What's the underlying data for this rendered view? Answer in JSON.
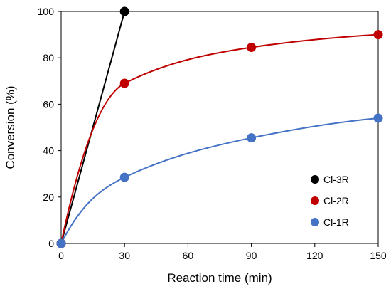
{
  "chart_data": {
    "type": "scatter",
    "xlabel": "Reaction time (min)",
    "ylabel": "Conversion (%)",
    "xlim": [
      0,
      150
    ],
    "ylim": [
      0,
      100
    ],
    "xticks": [
      0,
      30,
      60,
      90,
      120,
      150
    ],
    "yticks": [
      0,
      20,
      40,
      60,
      80,
      100
    ],
    "grid": false,
    "legend_position": "bottom-right",
    "series": [
      {
        "name": "Cl-3R",
        "color": "#000000",
        "x": [
          0,
          30
        ],
        "y": [
          0,
          100
        ],
        "fit": "straight line"
      },
      {
        "name": "Cl-2R",
        "color": "#C00000",
        "x": [
          0,
          30,
          90,
          150
        ],
        "y": [
          0,
          69,
          84.5,
          90
        ],
        "fit": "smooth curve"
      },
      {
        "name": "Cl-1R",
        "color": "#4472C4",
        "x": [
          0,
          30,
          90,
          150
        ],
        "y": [
          0,
          28.5,
          45.5,
          54
        ],
        "fit": "smooth curve"
      }
    ]
  }
}
